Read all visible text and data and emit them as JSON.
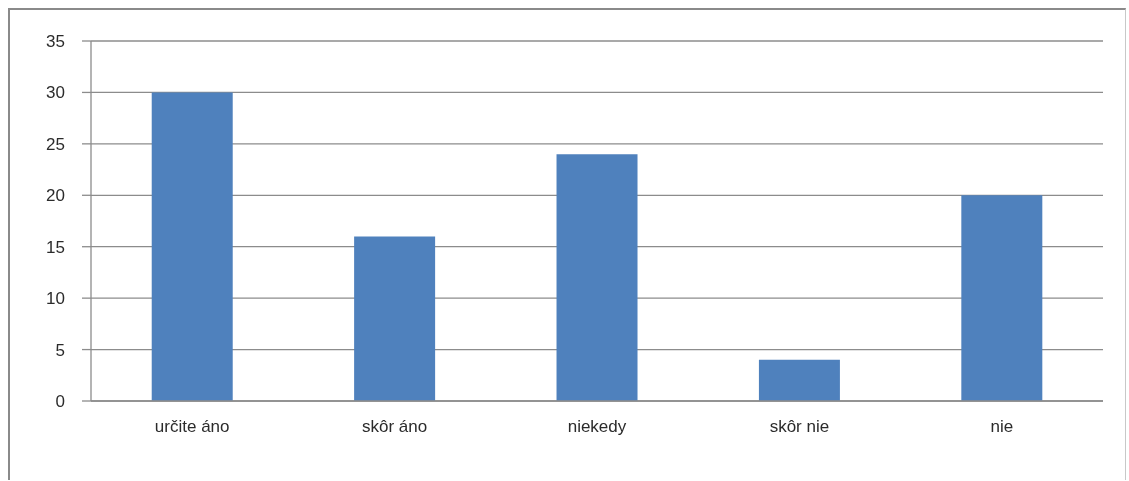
{
  "chart_data": {
    "type": "bar",
    "categories": [
      "určite áno",
      "skôr áno",
      "niekedy",
      "skôr nie",
      "nie"
    ],
    "values": [
      30,
      16,
      24,
      4,
      20
    ],
    "color": "#4f81bd",
    "ylim": [
      0,
      35
    ],
    "yticks": [
      0,
      5,
      10,
      15,
      20,
      25,
      30,
      35
    ],
    "grid": "y"
  }
}
